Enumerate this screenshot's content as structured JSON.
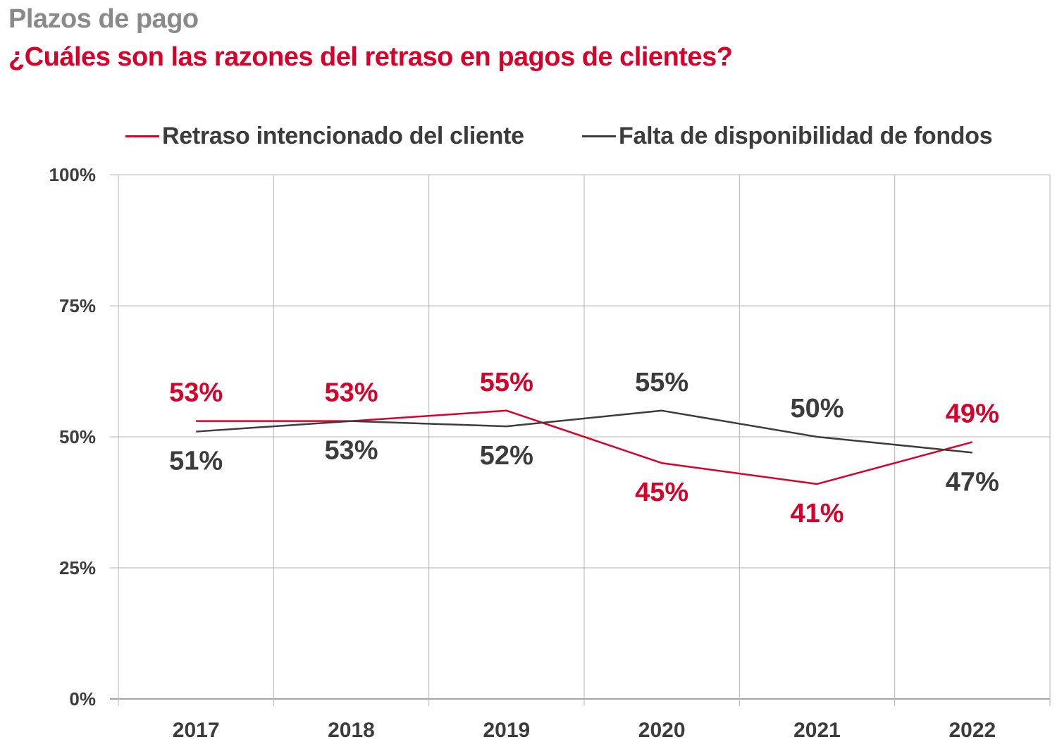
{
  "header": {
    "kicker": "Plazos de pago",
    "title": "¿Cuáles son las razones del retraso en pagos de clientes?"
  },
  "chart_data": {
    "type": "line",
    "x": [
      "2017",
      "2018",
      "2019",
      "2020",
      "2021",
      "2022"
    ],
    "yticks": [
      "0%",
      "25%",
      "50%",
      "75%",
      "100%"
    ],
    "ylim": [
      0,
      100
    ],
    "grid": true,
    "legend_position": "top",
    "series": [
      {
        "name": "Retraso intencionado del cliente",
        "color": "#d6002a",
        "values": [
          53,
          53,
          55,
          45,
          41,
          49
        ],
        "labels": [
          "53%",
          "53%",
          "55%",
          "45%",
          "41%",
          "49%"
        ],
        "label_position": [
          "above",
          "above",
          "above",
          "below",
          "below",
          "above"
        ]
      },
      {
        "name": "Falta de disponibilidad de fondos",
        "color": "#3c3c3c",
        "values": [
          51,
          53,
          52,
          55,
          50,
          47
        ],
        "labels": [
          "51%",
          "53%",
          "52%",
          "55%",
          "50%",
          "47%"
        ],
        "label_position": [
          "below",
          "below",
          "below",
          "above",
          "above",
          "below"
        ]
      }
    ]
  }
}
